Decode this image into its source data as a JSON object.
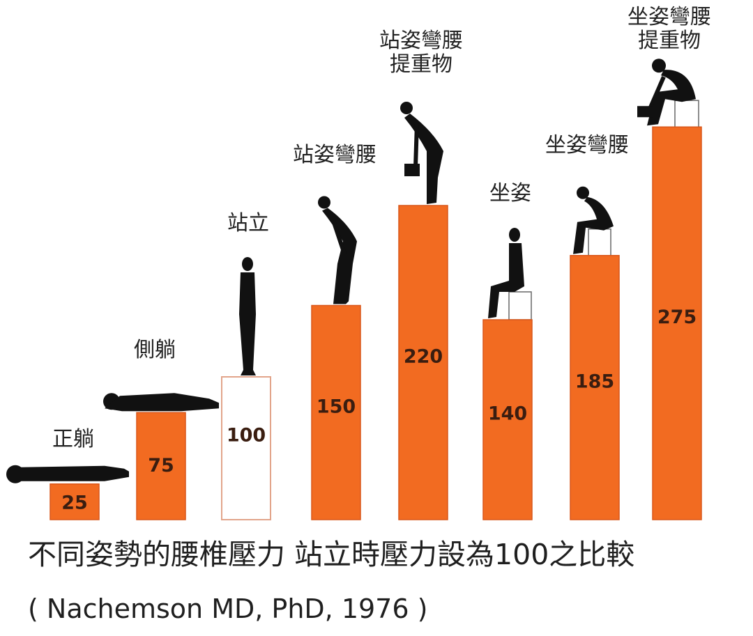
{
  "chart_data": {
    "type": "bar",
    "categories": [
      "正躺",
      "側躺",
      "站立",
      "站姿彎腰",
      "站姿彎腰\n提重物",
      "坐姿",
      "坐姿彎腰",
      "坐姿彎腰\n提重物"
    ],
    "values": [
      25,
      75,
      100,
      150,
      220,
      140,
      185,
      275
    ],
    "value_labels": [
      "25",
      "75",
      "100",
      "150",
      "220",
      "140",
      "185",
      "275"
    ],
    "ylim": [
      0,
      290
    ],
    "grid": false,
    "legend": false,
    "title": "",
    "xlabel": "",
    "ylabel": "",
    "highlight_index": 2,
    "colors": {
      "bar": "#f26b21",
      "bar_edge": "#d9571a",
      "highlight_fill": "#ffffff",
      "highlight_edge": "#e2a48a",
      "value_text": "#3a1d10",
      "category_text": "#222222",
      "silhouette": "#111111"
    },
    "figures": [
      "lying-flat",
      "lying-side",
      "standing",
      "standing-bent",
      "standing-bent-lifting",
      "sitting",
      "sitting-bent",
      "sitting-bent-lifting"
    ]
  },
  "caption": {
    "main": "不同姿勢的腰椎壓力 站立時壓力設為100之比較",
    "citation": "( Nachemson MD, PhD, 1976 )"
  }
}
